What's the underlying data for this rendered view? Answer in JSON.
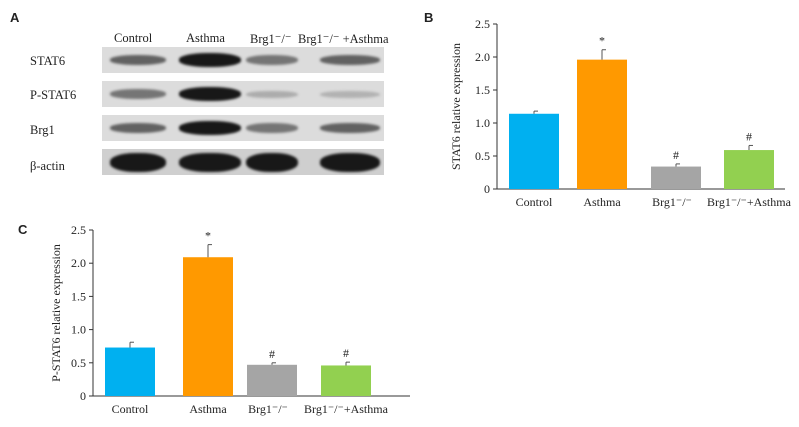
{
  "panels": {
    "a": {
      "letter": "A"
    },
    "b": {
      "letter": "B"
    },
    "c": {
      "letter": "C"
    }
  },
  "western_blot": {
    "lane_labels": [
      "Control",
      "Asthma",
      "Brg1⁻/⁻",
      "Brg1⁻/⁻ +Asthma"
    ],
    "rows": [
      {
        "label": "STAT6",
        "intensities": [
          0.55,
          0.95,
          0.45,
          0.55
        ]
      },
      {
        "label": "P-STAT6",
        "intensities": [
          0.45,
          0.95,
          0.15,
          0.12
        ]
      },
      {
        "label": "Brg1",
        "intensities": [
          0.55,
          0.95,
          0.45,
          0.55
        ]
      },
      {
        "label": "β-actin",
        "intensities": [
          0.95,
          0.95,
          0.95,
          0.95
        ]
      }
    ]
  },
  "chart_data": [
    {
      "type": "bar",
      "panel": "B",
      "categories": [
        "Control",
        "Asthma",
        "Brg1⁻/⁻",
        "Brg1⁻/⁻+Asthma"
      ],
      "values": [
        1.14,
        1.96,
        0.34,
        0.59
      ],
      "errors": [
        0.04,
        0.15,
        0.04,
        0.07
      ],
      "significance": [
        "",
        "*",
        "#",
        "#"
      ],
      "colors": [
        "#00b0f0",
        "#ff9900",
        "#a5a5a5",
        "#92d050"
      ],
      "ylabel": "STAT6 relative expression",
      "ylim": [
        0,
        2.5
      ],
      "yticks": [
        0,
        0.5,
        1.0,
        1.5,
        2.0,
        2.5
      ],
      "ytick_labels": [
        "0",
        "0.5",
        "1.0",
        "1.5",
        "2.0",
        "2.5"
      ]
    },
    {
      "type": "bar",
      "panel": "C",
      "categories": [
        "Control",
        "Asthma",
        "Brg1⁻/⁻",
        "Brg1⁻/⁻+Asthma"
      ],
      "values": [
        0.73,
        2.09,
        0.47,
        0.46
      ],
      "errors": [
        0.08,
        0.19,
        0.03,
        0.05
      ],
      "significance": [
        "",
        "*",
        "#",
        "#"
      ],
      "colors": [
        "#00b0f0",
        "#ff9900",
        "#a5a5a5",
        "#92d050"
      ],
      "ylabel": "P-STAT6 relative expression",
      "ylim": [
        0,
        2.5
      ],
      "yticks": [
        0,
        0.5,
        1.0,
        1.5,
        2.0,
        2.5
      ],
      "ytick_labels": [
        "0",
        "0.5",
        "1.0",
        "1.5",
        "2.0",
        "2.5"
      ]
    }
  ]
}
